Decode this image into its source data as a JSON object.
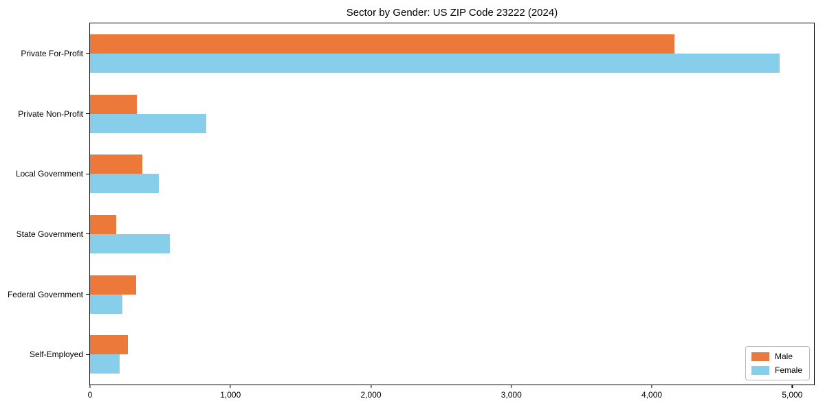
{
  "chart_data": {
    "type": "bar",
    "orientation": "horizontal",
    "title": "Sector by Gender: US ZIP Code 23222 (2024)",
    "categories": [
      "Private For-Profit",
      "Private Non-Profit",
      "Local Government",
      "State Government",
      "Federal Government",
      "Self-Employed"
    ],
    "series": [
      {
        "name": "Male",
        "color": "#ec7839",
        "values": [
          4160,
          335,
          370,
          185,
          330,
          270
        ]
      },
      {
        "name": "Female",
        "color": "#87ceeb",
        "values": [
          4910,
          825,
          490,
          570,
          230,
          210
        ]
      }
    ],
    "xlabel": "",
    "ylabel": "",
    "xlim": [
      0,
      5155
    ],
    "xticks": [
      0,
      1000,
      2000,
      3000,
      4000,
      5000
    ],
    "xtick_labels": [
      "0",
      "1,000",
      "2,000",
      "3,000",
      "4,000",
      "5,000"
    ],
    "grid": false,
    "legend": {
      "position": "lower right"
    }
  }
}
